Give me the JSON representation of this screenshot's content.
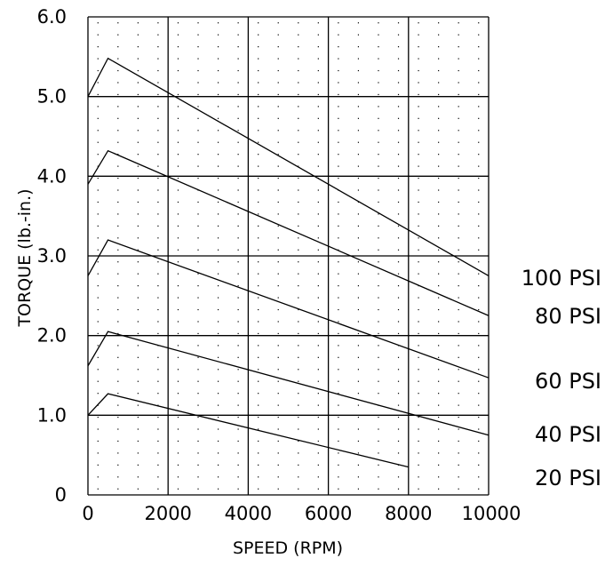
{
  "chart_data": {
    "type": "line",
    "title": "",
    "xlabel": "SPEED (RPM)",
    "ylabel": "TORQUE (lb.-in.)",
    "xlim": [
      0,
      10000
    ],
    "ylim": [
      0,
      6.0
    ],
    "x_ticks": [
      "0",
      "2000",
      "4000",
      "6000",
      "8000",
      "10000"
    ],
    "y_ticks": [
      "0",
      "1.0",
      "2.0",
      "3.0",
      "4.0",
      "5.0",
      "6.0"
    ],
    "grid": true,
    "minor_grid": "dotted",
    "series": [
      {
        "name": "100 PSI",
        "x": [
          0,
          500,
          10000
        ],
        "y": [
          5.0,
          5.48,
          2.75
        ]
      },
      {
        "name": "80 PSI",
        "x": [
          0,
          500,
          10000
        ],
        "y": [
          3.9,
          4.32,
          2.25
        ]
      },
      {
        "name": "60 PSI",
        "x": [
          0,
          500,
          10000
        ],
        "y": [
          2.75,
          3.2,
          1.47
        ]
      },
      {
        "name": "40 PSI",
        "x": [
          0,
          500,
          10000
        ],
        "y": [
          1.62,
          2.05,
          0.75
        ]
      },
      {
        "name": "20 PSI",
        "x": [
          0,
          500,
          8000
        ],
        "y": [
          1.0,
          1.27,
          0.35
        ]
      }
    ]
  }
}
